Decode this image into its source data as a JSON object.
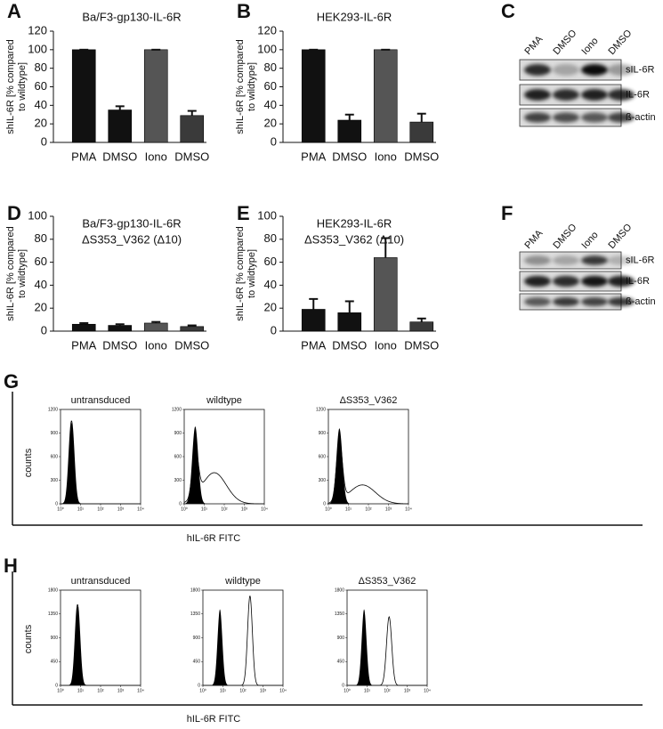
{
  "chart_data": [
    {
      "type": "bar",
      "panel_label": "A",
      "title": [
        "Ba/F3-gp130-IL-6R"
      ],
      "ylabel": [
        "shIL-6R [% compared",
        "to wildtype]"
      ],
      "categories": [
        "PMA",
        "DMSO",
        "Iono",
        "DMSO"
      ],
      "values": [
        100,
        35,
        100,
        29
      ],
      "errors": [
        0,
        4,
        0,
        5
      ],
      "colors": [
        "#111111",
        "#111111",
        "#555555",
        "#3a3a3a"
      ],
      "ylim": [
        0,
        120
      ],
      "yticks": [
        0,
        20,
        40,
        60,
        80,
        100,
        120
      ]
    },
    {
      "type": "bar",
      "panel_label": "B",
      "title": [
        "HEK293-IL-6R"
      ],
      "ylabel": [
        "shIL-6R [% compared",
        "to wildtype]"
      ],
      "categories": [
        "PMA",
        "DMSO",
        "Iono",
        "DMSO"
      ],
      "values": [
        100,
        24,
        100,
        22
      ],
      "errors": [
        0,
        6,
        0,
        9
      ],
      "colors": [
        "#111111",
        "#111111",
        "#555555",
        "#3a3a3a"
      ],
      "ylim": [
        0,
        120
      ],
      "yticks": [
        0,
        20,
        40,
        60,
        80,
        100,
        120
      ]
    },
    {
      "type": "bar",
      "panel_label": "D",
      "title": [
        "Ba/F3-gp130-IL-6R",
        "ΔS353_V362 (Δ10)"
      ],
      "ylabel": [
        "shIL-6R [% compared",
        "to wildtype]"
      ],
      "categories": [
        "PMA",
        "DMSO",
        "Iono",
        "DMSO"
      ],
      "values": [
        6,
        5,
        7,
        4
      ],
      "errors": [
        1,
        1,
        1,
        1
      ],
      "colors": [
        "#111111",
        "#111111",
        "#555555",
        "#3a3a3a"
      ],
      "ylim": [
        0,
        100
      ],
      "yticks": [
        0,
        20,
        40,
        60,
        80,
        100
      ]
    },
    {
      "type": "bar",
      "panel_label": "E",
      "title": [
        "HEK293-IL-6R",
        "ΔS353_V362 (Δ10)"
      ],
      "ylabel": [
        "shIL-6R [% compared",
        "to wildtype]"
      ],
      "categories": [
        "PMA",
        "DMSO",
        "Iono",
        "DMSO"
      ],
      "values": [
        19,
        16,
        64,
        8
      ],
      "errors": [
        9,
        10,
        17,
        3
      ],
      "colors": [
        "#111111",
        "#111111",
        "#555555",
        "#3a3a3a"
      ],
      "ylim": [
        0,
        100
      ],
      "yticks": [
        0,
        20,
        40,
        60,
        80,
        100
      ]
    }
  ],
  "blots": [
    {
      "panel_label": "C",
      "lanes": [
        "PMA",
        "DMSO",
        "Iono",
        "DMSO"
      ],
      "rows": [
        "sIL-6R",
        "IL-6R",
        "ß-actin"
      ]
    },
    {
      "panel_label": "F",
      "lanes": [
        "PMA",
        "DMSO",
        "Iono",
        "DMSO"
      ],
      "rows": [
        "sIL-6R",
        "IL-6R",
        "ß-actin"
      ]
    }
  ],
  "flow": [
    {
      "panel_label": "G",
      "ylabel": "counts",
      "xlabel": "hIL-6R FITC",
      "plots": [
        "untransduced",
        "wildtype",
        "ΔS353_V362"
      ],
      "xscale": "log",
      "xlim": [
        1,
        10000
      ],
      "ylim": [
        0,
        1200
      ],
      "yticks": [
        0,
        300,
        600,
        900,
        1200
      ],
      "xticks": [
        {
          "value": 1,
          "label": "10⁰"
        },
        {
          "value": 10,
          "label": "10¹"
        },
        {
          "value": 100,
          "label": "10²"
        },
        {
          "value": 1000,
          "label": "10³"
        },
        {
          "value": 10000,
          "label": "10⁴"
        }
      ]
    },
    {
      "panel_label": "H",
      "ylabel": "counts",
      "xlabel": "hIL-6R FITC",
      "plots": [
        "untransduced",
        "wildtype",
        "ΔS353_V362"
      ],
      "xscale": "log",
      "xlim": [
        1,
        10000
      ],
      "ylim": [
        0,
        1800
      ],
      "yticks": [
        0,
        450,
        900,
        1350,
        1800
      ],
      "xticks": [
        {
          "value": 1,
          "label": "10⁰"
        },
        {
          "value": 10,
          "label": "10¹"
        },
        {
          "value": 100,
          "label": "10²"
        },
        {
          "value": 1000,
          "label": "10³"
        },
        {
          "value": 10000,
          "label": "10⁴"
        }
      ]
    }
  ]
}
